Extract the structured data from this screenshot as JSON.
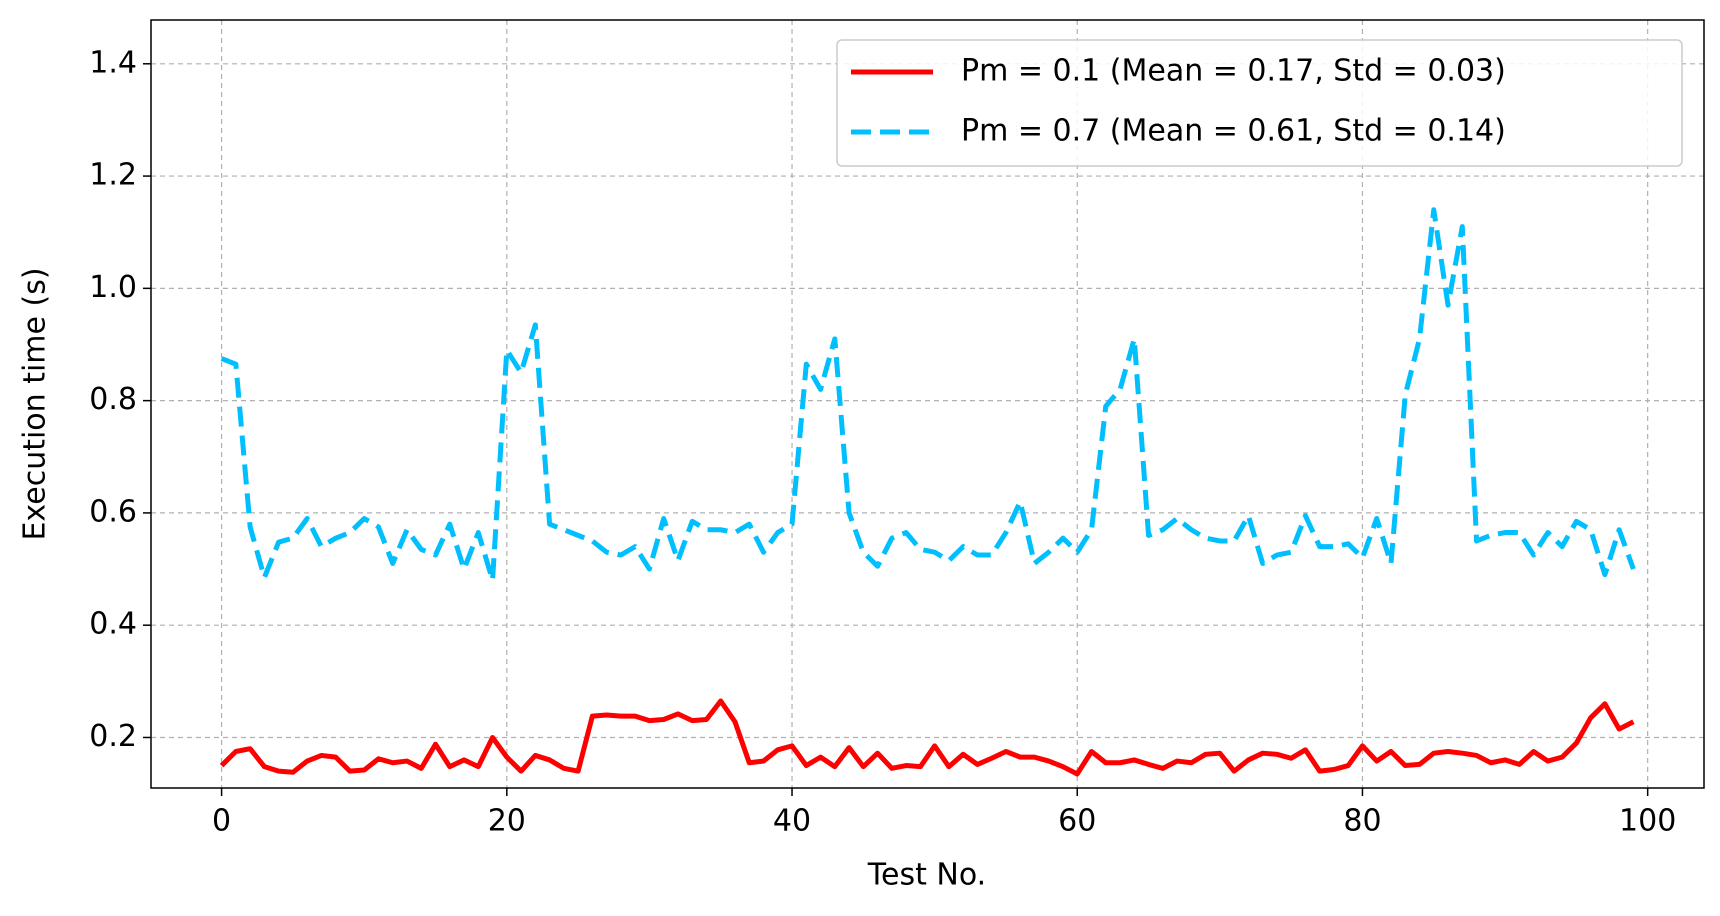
{
  "chart_data": {
    "type": "line",
    "xlabel": "Test No.",
    "ylabel": "Execution time (s)",
    "x": [
      0,
      1,
      2,
      3,
      4,
      5,
      6,
      7,
      8,
      9,
      10,
      11,
      12,
      13,
      14,
      15,
      16,
      17,
      18,
      19,
      20,
      21,
      22,
      23,
      24,
      25,
      26,
      27,
      28,
      29,
      30,
      31,
      32,
      33,
      34,
      35,
      36,
      37,
      38,
      39,
      40,
      41,
      42,
      43,
      44,
      45,
      46,
      47,
      48,
      49,
      50,
      51,
      52,
      53,
      54,
      55,
      56,
      57,
      58,
      59,
      60,
      61,
      62,
      63,
      64,
      65,
      66,
      67,
      68,
      69,
      70,
      71,
      72,
      73,
      74,
      75,
      76,
      77,
      78,
      79,
      80,
      81,
      82,
      83,
      84,
      85,
      86,
      87,
      88,
      89,
      90,
      91,
      92,
      93,
      94,
      95,
      96,
      97,
      98,
      99
    ],
    "series": [
      {
        "name": "Pm = 0.1 (Mean = 0.17, Std = 0.03)",
        "color": "#ff0000",
        "dash": false,
        "values": [
          0.15,
          0.175,
          0.18,
          0.148,
          0.14,
          0.138,
          0.158,
          0.168,
          0.165,
          0.14,
          0.142,
          0.162,
          0.155,
          0.158,
          0.145,
          0.188,
          0.148,
          0.16,
          0.148,
          0.2,
          0.165,
          0.14,
          0.168,
          0.16,
          0.145,
          0.14,
          0.238,
          0.24,
          0.238,
          0.238,
          0.23,
          0.232,
          0.242,
          0.23,
          0.232,
          0.265,
          0.228,
          0.155,
          0.158,
          0.178,
          0.185,
          0.15,
          0.165,
          0.148,
          0.182,
          0.148,
          0.172,
          0.145,
          0.15,
          0.148,
          0.185,
          0.148,
          0.17,
          0.152,
          0.163,
          0.175,
          0.165,
          0.165,
          0.158,
          0.148,
          0.135,
          0.175,
          0.155,
          0.155,
          0.16,
          0.152,
          0.145,
          0.158,
          0.155,
          0.17,
          0.172,
          0.14,
          0.16,
          0.172,
          0.17,
          0.163,
          0.178,
          0.14,
          0.143,
          0.15,
          0.185,
          0.158,
          0.175,
          0.15,
          0.152,
          0.172,
          0.175,
          0.172,
          0.168,
          0.155,
          0.16,
          0.152,
          0.175,
          0.158,
          0.165,
          0.19,
          0.235,
          0.26,
          0.215,
          0.228
        ]
      },
      {
        "name": "Pm = 0.7 (Mean = 0.61, Std = 0.14)",
        "color": "#00bfff",
        "dash": true,
        "values": [
          0.875,
          0.865,
          0.575,
          0.485,
          0.548,
          0.555,
          0.59,
          0.54,
          0.555,
          0.565,
          0.59,
          0.575,
          0.51,
          0.57,
          0.535,
          0.525,
          0.58,
          0.5,
          0.565,
          0.48,
          0.89,
          0.85,
          0.935,
          0.58,
          0.57,
          0.56,
          0.55,
          0.53,
          0.525,
          0.54,
          0.5,
          0.59,
          0.515,
          0.585,
          0.57,
          0.57,
          0.565,
          0.58,
          0.53,
          0.565,
          0.58,
          0.865,
          0.82,
          0.91,
          0.6,
          0.53,
          0.505,
          0.555,
          0.565,
          0.535,
          0.53,
          0.515,
          0.54,
          0.525,
          0.525,
          0.565,
          0.62,
          0.51,
          0.53,
          0.555,
          0.53,
          0.57,
          0.79,
          0.82,
          0.91,
          0.56,
          0.57,
          0.59,
          0.57,
          0.555,
          0.55,
          0.55,
          0.595,
          0.51,
          0.525,
          0.53,
          0.595,
          0.54,
          0.54,
          0.545,
          0.52,
          0.59,
          0.51,
          0.81,
          0.91,
          1.14,
          0.97,
          1.11,
          0.55,
          0.56,
          0.565,
          0.565,
          0.525,
          0.565,
          0.54,
          0.585,
          0.57,
          0.49,
          0.57,
          0.5
        ]
      }
    ],
    "xlim": [
      -4.95,
      103.95
    ],
    "xticks": [
      0,
      20,
      40,
      60,
      80,
      100
    ],
    "ylim": [
      0.11,
      1.478
    ],
    "yticks": [
      0.2,
      0.4,
      0.6,
      0.8,
      {
        "value": 1,
        "label": "1.0"
      },
      1.2,
      1.4
    ],
    "grid": true,
    "legend": "upper right"
  }
}
